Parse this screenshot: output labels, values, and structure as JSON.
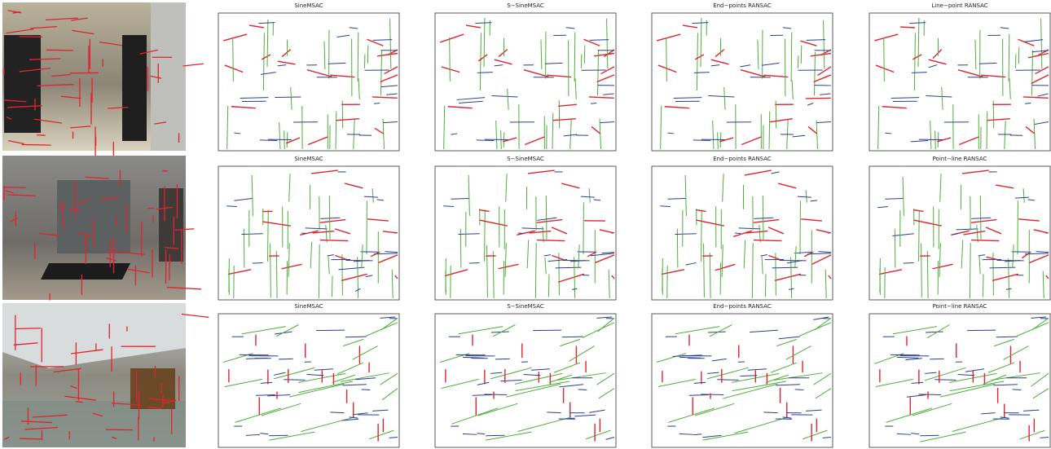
{
  "rows": [
    {
      "titles": [
        "SineMSAC",
        "S−SineMSAC",
        "End−points RANSAC",
        "Line−point RANSAC"
      ]
    },
    {
      "titles": [
        "SineMSAC",
        "S−SineMSAC",
        "End−points RANSAC",
        "Point−line RANSAC"
      ]
    },
    {
      "titles": [
        "SineMSAC",
        "S−SineMSAC",
        "End−points RANSAC",
        "Point−line RANSAC"
      ]
    }
  ]
}
